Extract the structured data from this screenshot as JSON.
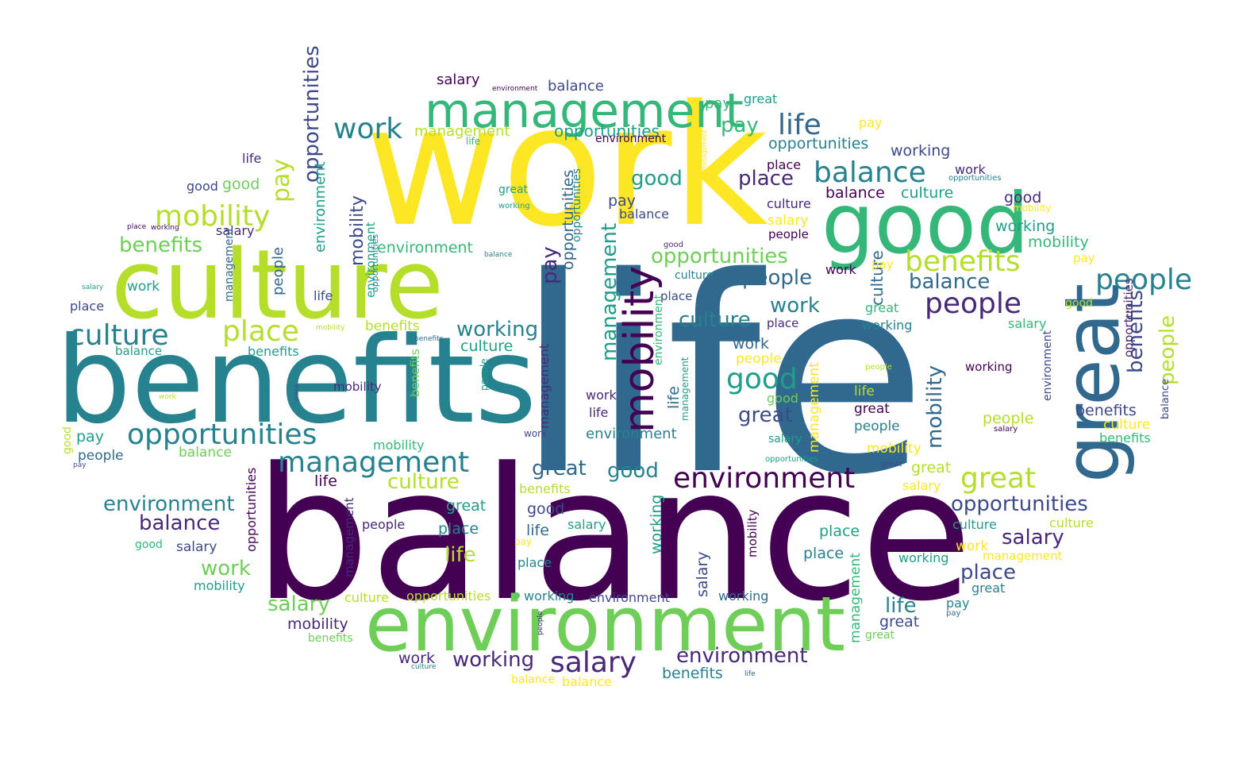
{
  "palette": {
    "c0": "#440154",
    "c1": "#482878",
    "c2": "#3e4989",
    "c3": "#31688e",
    "c4": "#26828e",
    "c5": "#1f9e89",
    "c6": "#35b779",
    "c7": "#6ece58",
    "c8": "#b5de2b",
    "c9": "#fde725"
  },
  "words": [
    "work",
    "life",
    "balance",
    "benefits",
    "culture",
    "environment",
    "good",
    "great",
    "management",
    "mobility",
    "opportunities",
    "pay",
    "people",
    "place",
    "salary",
    "working"
  ]
}
